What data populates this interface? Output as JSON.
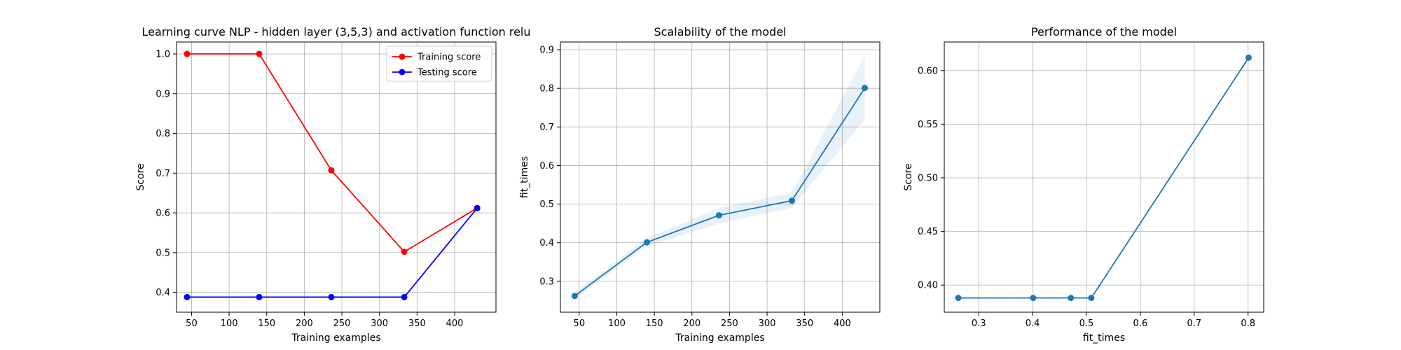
{
  "chart_data": [
    {
      "type": "line",
      "title": "Learning curve NLP - hidden layer (3,5,3) and activation function relu",
      "xlabel": "Training examples",
      "ylabel": "Score",
      "xlim": [
        30,
        455
      ],
      "ylim": [
        0.35,
        1.03
      ],
      "xticks": [
        50,
        100,
        150,
        200,
        250,
        300,
        350,
        400
      ],
      "yticks": [
        0.4,
        0.5,
        0.6,
        0.7,
        0.8,
        0.9,
        1.0
      ],
      "ytick_labels": [
        "0.4",
        "0.5",
        "0.6",
        "0.7",
        "0.8",
        "0.9",
        "1.0"
      ],
      "grid": true,
      "legend_position": "top-right",
      "x": [
        44,
        140,
        236,
        333,
        430
      ],
      "series": [
        {
          "name": "Training score",
          "color": "#ff0000",
          "values": [
            1.0,
            1.0,
            0.707,
            0.502,
            0.612
          ]
        },
        {
          "name": "Testing score",
          "color": "#0000ff",
          "values": [
            0.388,
            0.388,
            0.388,
            0.388,
            0.612
          ]
        }
      ]
    },
    {
      "type": "line",
      "title": "Scalability of the model",
      "xlabel": "Training examples",
      "ylabel": "fit_times",
      "xlim": [
        25,
        450
      ],
      "ylim": [
        0.22,
        0.92
      ],
      "xticks": [
        50,
        100,
        150,
        200,
        250,
        300,
        350,
        400
      ],
      "yticks": [
        0.3,
        0.4,
        0.5,
        0.6,
        0.7,
        0.8,
        0.9
      ],
      "ytick_labels": [
        "0.3",
        "0.4",
        "0.5",
        "0.6",
        "0.7",
        "0.8",
        "0.9"
      ],
      "grid": true,
      "x": [
        44,
        140,
        236,
        333,
        430
      ],
      "series": [
        {
          "color": "#1f77b4",
          "values": [
            0.262,
            0.401,
            0.471,
            0.509,
            0.801
          ],
          "band_low": [
            0.255,
            0.39,
            0.45,
            0.49,
            0.72
          ],
          "band_high": [
            0.27,
            0.412,
            0.49,
            0.53,
            0.885
          ]
        }
      ]
    },
    {
      "type": "line",
      "title": "Performance of the model",
      "xlabel": "fit_times",
      "ylabel": "Score",
      "xlim": [
        0.236,
        0.829
      ],
      "ylim": [
        0.3747,
        0.6266
      ],
      "xticks": [
        0.3,
        0.4,
        0.5,
        0.6,
        0.7,
        0.8
      ],
      "yticks": [
        0.4,
        0.45,
        0.5,
        0.55,
        0.6
      ],
      "ytick_labels": [
        "0.40",
        "0.45",
        "0.50",
        "0.55",
        "0.60"
      ],
      "grid": true,
      "x": [
        0.262,
        0.401,
        0.471,
        0.509,
        0.801
      ],
      "series": [
        {
          "color": "#1f77b4",
          "values": [
            0.388,
            0.388,
            0.388,
            0.388,
            0.612
          ]
        }
      ]
    }
  ]
}
